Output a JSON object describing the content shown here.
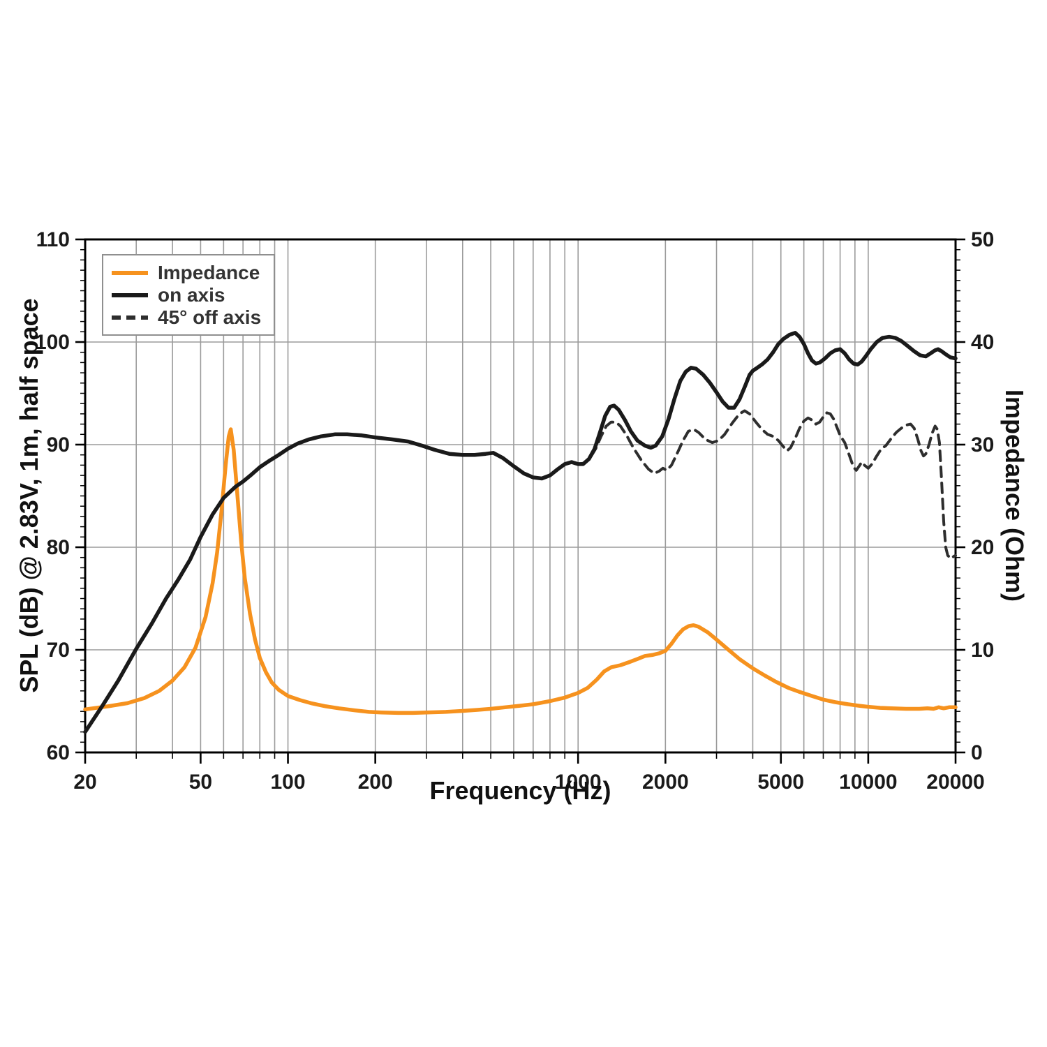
{
  "chart_data": {
    "type": "line",
    "title": "",
    "xlabel": "Frequency (Hz)",
    "ylabel_left": "SPL (dB) @ 2.83V, 1m, half space",
    "ylabel_right": "Impedance (Ohm)",
    "x_scale": "log",
    "x_range": [
      20,
      20000
    ],
    "x_ticks_labeled": [
      20,
      50,
      100,
      200,
      1000,
      2000,
      5000,
      10000,
      20000
    ],
    "y_left_range": [
      60,
      110
    ],
    "y_left_ticks": [
      60,
      70,
      80,
      90,
      100,
      110
    ],
    "y_right_range": [
      0,
      50
    ],
    "y_right_ticks": [
      0,
      10,
      20,
      30,
      40,
      50
    ],
    "grid": true,
    "grid_color": "#9b9b9b",
    "axis_color": "#000000",
    "legend_position": "top-left",
    "series": [
      {
        "name": "Impedance",
        "id": "impedance-curve",
        "axis": "right",
        "color": "#F6921E",
        "style": "solid",
        "unit": "Ohm",
        "points": [
          [
            20,
            4.2
          ],
          [
            24,
            4.5
          ],
          [
            28,
            4.8
          ],
          [
            32,
            5.3
          ],
          [
            36,
            6.0
          ],
          [
            40,
            7.0
          ],
          [
            44,
            8.3
          ],
          [
            48,
            10.2
          ],
          [
            52,
            13.2
          ],
          [
            55,
            16.5
          ],
          [
            57,
            19.5
          ],
          [
            59,
            23.5
          ],
          [
            61,
            28.0
          ],
          [
            62.5,
            30.8
          ],
          [
            63.5,
            31.5
          ],
          [
            65,
            29.5
          ],
          [
            67,
            25.0
          ],
          [
            69,
            20.5
          ],
          [
            71,
            17.0
          ],
          [
            74,
            13.5
          ],
          [
            77,
            11.0
          ],
          [
            80,
            9.2
          ],
          [
            84,
            7.8
          ],
          [
            88,
            6.8
          ],
          [
            93,
            6.1
          ],
          [
            100,
            5.5
          ],
          [
            110,
            5.1
          ],
          [
            120,
            4.8
          ],
          [
            135,
            4.5
          ],
          [
            150,
            4.3
          ],
          [
            170,
            4.1
          ],
          [
            190,
            3.95
          ],
          [
            210,
            3.9
          ],
          [
            240,
            3.85
          ],
          [
            270,
            3.85
          ],
          [
            300,
            3.9
          ],
          [
            350,
            3.95
          ],
          [
            400,
            4.05
          ],
          [
            450,
            4.15
          ],
          [
            500,
            4.25
          ],
          [
            560,
            4.4
          ],
          [
            630,
            4.55
          ],
          [
            700,
            4.7
          ],
          [
            800,
            5.0
          ],
          [
            900,
            5.35
          ],
          [
            1000,
            5.8
          ],
          [
            1080,
            6.3
          ],
          [
            1160,
            7.1
          ],
          [
            1230,
            7.9
          ],
          [
            1300,
            8.3
          ],
          [
            1400,
            8.5
          ],
          [
            1500,
            8.8
          ],
          [
            1600,
            9.1
          ],
          [
            1700,
            9.4
          ],
          [
            1800,
            9.5
          ],
          [
            1900,
            9.65
          ],
          [
            2000,
            9.9
          ],
          [
            2100,
            10.6
          ],
          [
            2200,
            11.4
          ],
          [
            2300,
            12.0
          ],
          [
            2400,
            12.3
          ],
          [
            2500,
            12.4
          ],
          [
            2600,
            12.25
          ],
          [
            2800,
            11.7
          ],
          [
            3000,
            11.0
          ],
          [
            3300,
            10.0
          ],
          [
            3600,
            9.1
          ],
          [
            4000,
            8.2
          ],
          [
            4400,
            7.5
          ],
          [
            4800,
            6.9
          ],
          [
            5300,
            6.3
          ],
          [
            5800,
            5.9
          ],
          [
            6400,
            5.5
          ],
          [
            7000,
            5.15
          ],
          [
            7700,
            4.9
          ],
          [
            8500,
            4.7
          ],
          [
            9300,
            4.55
          ],
          [
            10000,
            4.45
          ],
          [
            11000,
            4.35
          ],
          [
            12000,
            4.3
          ],
          [
            13500,
            4.25
          ],
          [
            15000,
            4.25
          ],
          [
            16000,
            4.3
          ],
          [
            16800,
            4.25
          ],
          [
            17500,
            4.4
          ],
          [
            18200,
            4.3
          ],
          [
            19000,
            4.4
          ],
          [
            20000,
            4.4
          ]
        ]
      },
      {
        "name": "on axis",
        "id": "on-axis-curve",
        "axis": "left",
        "color": "#1a1a1a",
        "style": "solid",
        "unit": "dB",
        "points": [
          [
            20,
            62.0
          ],
          [
            23,
            64.6
          ],
          [
            26,
            67.0
          ],
          [
            30,
            70.1
          ],
          [
            34,
            72.6
          ],
          [
            38,
            75.0
          ],
          [
            42,
            76.9
          ],
          [
            46,
            78.8
          ],
          [
            50,
            81.0
          ],
          [
            55,
            83.2
          ],
          [
            60,
            84.8
          ],
          [
            66,
            85.9
          ],
          [
            70,
            86.4
          ],
          [
            75,
            87.1
          ],
          [
            80,
            87.8
          ],
          [
            86,
            88.4
          ],
          [
            93,
            89.0
          ],
          [
            100,
            89.6
          ],
          [
            108,
            90.1
          ],
          [
            118,
            90.5
          ],
          [
            130,
            90.8
          ],
          [
            145,
            91.0
          ],
          [
            160,
            91.0
          ],
          [
            180,
            90.9
          ],
          [
            200,
            90.7
          ],
          [
            230,
            90.5
          ],
          [
            260,
            90.3
          ],
          [
            290,
            89.9
          ],
          [
            320,
            89.5
          ],
          [
            360,
            89.1
          ],
          [
            400,
            89.0
          ],
          [
            440,
            89.0
          ],
          [
            480,
            89.1
          ],
          [
            510,
            89.2
          ],
          [
            550,
            88.7
          ],
          [
            600,
            87.9
          ],
          [
            650,
            87.2
          ],
          [
            700,
            86.8
          ],
          [
            750,
            86.7
          ],
          [
            800,
            87.0
          ],
          [
            850,
            87.6
          ],
          [
            900,
            88.1
          ],
          [
            950,
            88.3
          ],
          [
            1000,
            88.1
          ],
          [
            1040,
            88.1
          ],
          [
            1090,
            88.6
          ],
          [
            1140,
            89.6
          ],
          [
            1190,
            91.2
          ],
          [
            1240,
            92.8
          ],
          [
            1290,
            93.7
          ],
          [
            1330,
            93.8
          ],
          [
            1380,
            93.4
          ],
          [
            1450,
            92.4
          ],
          [
            1520,
            91.3
          ],
          [
            1600,
            90.4
          ],
          [
            1700,
            89.9
          ],
          [
            1780,
            89.7
          ],
          [
            1850,
            89.9
          ],
          [
            1950,
            90.8
          ],
          [
            2050,
            92.5
          ],
          [
            2150,
            94.5
          ],
          [
            2250,
            96.2
          ],
          [
            2350,
            97.1
          ],
          [
            2450,
            97.5
          ],
          [
            2550,
            97.4
          ],
          [
            2700,
            96.8
          ],
          [
            2850,
            96.0
          ],
          [
            3000,
            95.1
          ],
          [
            3150,
            94.2
          ],
          [
            3300,
            93.6
          ],
          [
            3450,
            93.6
          ],
          [
            3600,
            94.4
          ],
          [
            3750,
            95.6
          ],
          [
            3900,
            96.8
          ],
          [
            4000,
            97.2
          ],
          [
            4150,
            97.5
          ],
          [
            4300,
            97.8
          ],
          [
            4500,
            98.3
          ],
          [
            4700,
            99.0
          ],
          [
            4900,
            99.8
          ],
          [
            5100,
            100.3
          ],
          [
            5350,
            100.7
          ],
          [
            5600,
            100.9
          ],
          [
            5800,
            100.5
          ],
          [
            6000,
            99.8
          ],
          [
            6200,
            98.9
          ],
          [
            6400,
            98.2
          ],
          [
            6600,
            97.9
          ],
          [
            6800,
            98.0
          ],
          [
            7100,
            98.4
          ],
          [
            7400,
            98.9
          ],
          [
            7700,
            99.2
          ],
          [
            8000,
            99.3
          ],
          [
            8300,
            98.9
          ],
          [
            8600,
            98.3
          ],
          [
            8900,
            97.9
          ],
          [
            9200,
            97.8
          ],
          [
            9500,
            98.1
          ],
          [
            9800,
            98.6
          ],
          [
            10200,
            99.3
          ],
          [
            10700,
            100.0
          ],
          [
            11200,
            100.4
          ],
          [
            11800,
            100.5
          ],
          [
            12400,
            100.4
          ],
          [
            13000,
            100.1
          ],
          [
            13700,
            99.6
          ],
          [
            14400,
            99.1
          ],
          [
            15100,
            98.7
          ],
          [
            15800,
            98.6
          ],
          [
            16400,
            98.9
          ],
          [
            17000,
            99.2
          ],
          [
            17400,
            99.3
          ],
          [
            17900,
            99.1
          ],
          [
            18500,
            98.8
          ],
          [
            19200,
            98.5
          ],
          [
            20000,
            98.4
          ]
        ]
      },
      {
        "name": "45° off axis",
        "id": "off-axis-curve",
        "axis": "left",
        "color": "#2e2e2e",
        "style": "dashed",
        "unit": "dB",
        "points": [
          [
            1000,
            88.1
          ],
          [
            1050,
            88.2
          ],
          [
            1100,
            88.7
          ],
          [
            1150,
            89.6
          ],
          [
            1200,
            90.8
          ],
          [
            1250,
            91.8
          ],
          [
            1300,
            92.2
          ],
          [
            1350,
            92.2
          ],
          [
            1400,
            91.8
          ],
          [
            1470,
            90.9
          ],
          [
            1550,
            89.7
          ],
          [
            1650,
            88.5
          ],
          [
            1750,
            87.6
          ],
          [
            1830,
            87.2
          ],
          [
            1900,
            87.4
          ],
          [
            1960,
            87.7
          ],
          [
            2020,
            87.5
          ],
          [
            2100,
            88.0
          ],
          [
            2200,
            89.2
          ],
          [
            2300,
            90.4
          ],
          [
            2400,
            91.3
          ],
          [
            2500,
            91.5
          ],
          [
            2600,
            91.2
          ],
          [
            2750,
            90.5
          ],
          [
            2900,
            90.2
          ],
          [
            3050,
            90.4
          ],
          [
            3200,
            91.0
          ],
          [
            3400,
            92.1
          ],
          [
            3600,
            93.0
          ],
          [
            3750,
            93.3
          ],
          [
            3900,
            93.0
          ],
          [
            4100,
            92.2
          ],
          [
            4300,
            91.5
          ],
          [
            4500,
            91.0
          ],
          [
            4700,
            90.8
          ],
          [
            4900,
            90.4
          ],
          [
            5100,
            89.8
          ],
          [
            5250,
            89.4
          ],
          [
            5400,
            89.7
          ],
          [
            5600,
            90.6
          ],
          [
            5800,
            91.6
          ],
          [
            6000,
            92.3
          ],
          [
            6200,
            92.6
          ],
          [
            6400,
            92.4
          ],
          [
            6600,
            92.0
          ],
          [
            6800,
            92.2
          ],
          [
            7000,
            92.7
          ],
          [
            7200,
            93.1
          ],
          [
            7400,
            93.0
          ],
          [
            7600,
            92.5
          ],
          [
            7800,
            91.7
          ],
          [
            8000,
            90.9
          ],
          [
            8300,
            90.2
          ],
          [
            8600,
            89.0
          ],
          [
            8900,
            87.8
          ],
          [
            9100,
            87.5
          ],
          [
            9300,
            87.9
          ],
          [
            9500,
            88.3
          ],
          [
            9700,
            88.0
          ],
          [
            10000,
            87.7
          ],
          [
            10300,
            88.1
          ],
          [
            10700,
            88.9
          ],
          [
            11100,
            89.6
          ],
          [
            11500,
            89.9
          ],
          [
            12000,
            90.6
          ],
          [
            12500,
            91.2
          ],
          [
            13000,
            91.6
          ],
          [
            13500,
            91.9
          ],
          [
            14000,
            92.0
          ],
          [
            14400,
            91.6
          ],
          [
            14800,
            90.6
          ],
          [
            15200,
            89.4
          ],
          [
            15500,
            88.9
          ],
          [
            15800,
            89.1
          ],
          [
            16200,
            90.0
          ],
          [
            16600,
            91.1
          ],
          [
            17000,
            91.8
          ],
          [
            17300,
            91.5
          ],
          [
            17600,
            90.2
          ],
          [
            17900,
            86.5
          ],
          [
            18200,
            82.5
          ],
          [
            18500,
            80.0
          ],
          [
            18800,
            79.2
          ],
          [
            19300,
            78.9
          ],
          [
            19700,
            79.1
          ],
          [
            20000,
            79.2
          ]
        ]
      }
    ]
  },
  "legend": {
    "items": [
      "Impedance",
      "on axis",
      "45° off axis"
    ]
  }
}
